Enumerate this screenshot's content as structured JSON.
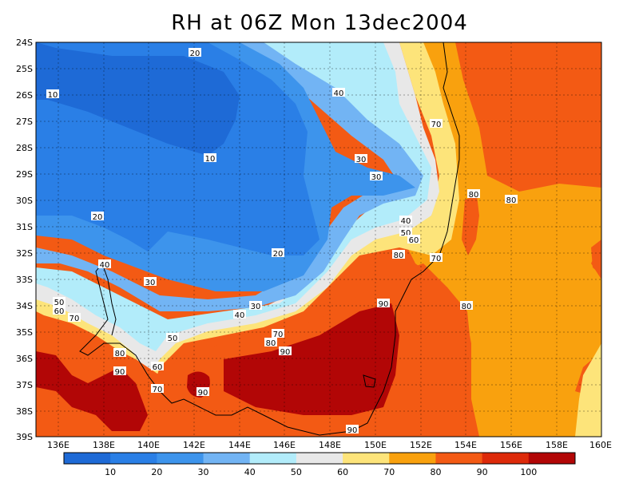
{
  "title": "RH at 06Z Mon 13dec2004",
  "map": {
    "lat_labels": [
      "24S",
      "25S",
      "26S",
      "27S",
      "28S",
      "29S",
      "30S",
      "31S",
      "32S",
      "33S",
      "34S",
      "35S",
      "36S",
      "37S",
      "38S",
      "39S"
    ],
    "lon_labels": [
      "136E",
      "138E",
      "140E",
      "142E",
      "144E",
      "146E",
      "148E",
      "150E",
      "152E",
      "154E",
      "156E",
      "158E",
      "160E"
    ],
    "contour_labels": [
      {
        "text": "20"
      },
      {
        "text": "10"
      },
      {
        "text": "10"
      },
      {
        "text": "40"
      },
      {
        "text": "70"
      },
      {
        "text": "30"
      },
      {
        "text": "30"
      },
      {
        "text": "80"
      },
      {
        "text": "80"
      },
      {
        "text": "20"
      },
      {
        "text": "40"
      },
      {
        "text": "50"
      },
      {
        "text": "60"
      },
      {
        "text": "20"
      },
      {
        "text": "80"
      },
      {
        "text": "70"
      },
      {
        "text": "40"
      },
      {
        "text": "30"
      },
      {
        "text": "90"
      },
      {
        "text": "80"
      },
      {
        "text": "50"
      },
      {
        "text": "60"
      },
      {
        "text": "70"
      },
      {
        "text": "30"
      },
      {
        "text": "40"
      },
      {
        "text": "70"
      },
      {
        "text": "80"
      },
      {
        "text": "50"
      },
      {
        "text": "90"
      },
      {
        "text": "80"
      },
      {
        "text": "90"
      },
      {
        "text": "60"
      },
      {
        "text": "70"
      },
      {
        "text": "90"
      },
      {
        "text": "90"
      }
    ]
  },
  "colorbar": {
    "labels": [
      "10",
      "20",
      "30",
      "40",
      "50",
      "60",
      "70",
      "80",
      "90",
      "100"
    ],
    "colors": [
      "#1e6ad6",
      "#2a7fe6",
      "#3d94ec",
      "#72b4f4",
      "#b2ecfa",
      "#e8e8e8",
      "#fde47a",
      "#f9a10e",
      "#f35a14",
      "#dd2a0a",
      "#b20606"
    ]
  }
}
